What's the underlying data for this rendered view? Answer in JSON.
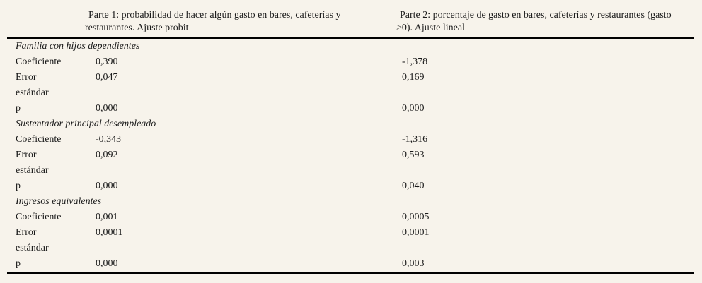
{
  "table": {
    "columns": [
      {
        "header": ""
      },
      {
        "header": "Parte 1: probabilidad de hacer algún gasto en bares, cafeterías y restaurantes. Ajuste probit"
      },
      {
        "header": "Parte 2: porcentaje de gasto en bares, cafeterías y restaurantes (gasto >0). Ajuste lineal"
      }
    ],
    "row_labels": [
      "Coeficiente",
      "Error estándar",
      "p"
    ],
    "sections": [
      {
        "title": "Familia con hijos dependientes",
        "rows": [
          {
            "label": "Coeficiente",
            "parte1": "0,390",
            "parte2": "-1,378"
          },
          {
            "label": "Error estándar",
            "parte1": "0,047",
            "parte2": "0,169"
          },
          {
            "label": "p",
            "parte1": "0,000",
            "parte2": "0,000"
          }
        ]
      },
      {
        "title": "Sustentador principal desempleado",
        "rows": [
          {
            "label": "Coeficiente",
            "parte1": "-0,343",
            "parte2": "-1,316"
          },
          {
            "label": "Error estándar",
            "parte1": "0,092",
            "parte2": "0,593"
          },
          {
            "label": "p",
            "parte1": "0,000",
            "parte2": "0,040"
          }
        ]
      },
      {
        "title": "Ingresos equivalentes",
        "rows": [
          {
            "label": "Coeficiente",
            "parte1": "0,001",
            "parte2": "0,0005"
          },
          {
            "label": "Error estándar",
            "parte1": "0,0001",
            "parte2": "0,0001"
          },
          {
            "label": "p",
            "parte1": "0,000",
            "parte2": "0,003"
          }
        ]
      }
    ]
  }
}
